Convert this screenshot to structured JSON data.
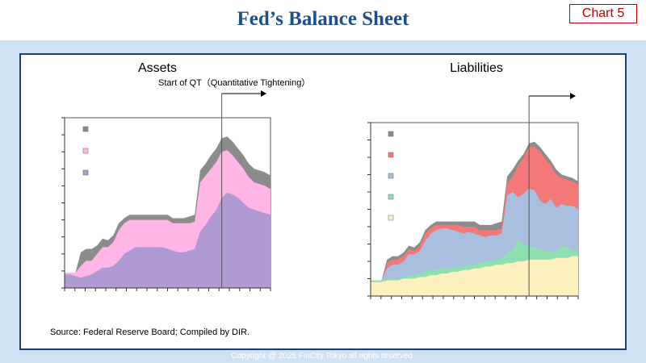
{
  "page": {
    "title": "Fed’s Balance Sheet",
    "chart_tag": "Chart 5",
    "source": "Source: Federal Reserve Board; Compiled by DIR.",
    "footer": "Copyright @ 2025 FinCity.Tokyo all rights reserved."
  },
  "colors": {
    "title": "#1f4e8c",
    "tag": "#c00000",
    "band": "#cfe2f3",
    "gray": "#8c8c8c",
    "pink": "#ffb6e6",
    "purple": "#b09ad2",
    "red": "#f47878",
    "blue": "#a9bfe0",
    "green": "#8fe0b0",
    "cream": "#fff0c0"
  },
  "chart_data": [
    {
      "type": "area",
      "title": "Assets",
      "annotation": "Start of QT（Quantitative Tightening）",
      "x": [
        0,
        1,
        2,
        3,
        4,
        5,
        6,
        7,
        8,
        9,
        10,
        11,
        12,
        13,
        14,
        15,
        16,
        17,
        18,
        19,
        20,
        21,
        22,
        23,
        24,
        25,
        26,
        27,
        28,
        29,
        30,
        31,
        32,
        33,
        34,
        35,
        36,
        37,
        38
      ],
      "series": [
        {
          "name": "",
          "color": "gray",
          "values": [
            0.9,
            0.9,
            0.9,
            2.1,
            2.3,
            2.3,
            2.5,
            2.9,
            2.8,
            3.1,
            3.8,
            4.1,
            4.3,
            4.3,
            4.3,
            4.3,
            4.3,
            4.3,
            4.3,
            4.3,
            4.1,
            4.1,
            4.1,
            4.2,
            4.3,
            6.9,
            7.3,
            7.8,
            8.2,
            8.8,
            8.9,
            8.6,
            8.2,
            7.8,
            7.3,
            7.0,
            6.9,
            6.8,
            6.6
          ]
        },
        {
          "name": "",
          "color": "pink",
          "values": [
            0.9,
            0.9,
            0.9,
            1.3,
            1.6,
            1.6,
            2.0,
            2.4,
            2.4,
            2.7,
            3.4,
            3.8,
            4.0,
            4.0,
            4.0,
            4.0,
            4.0,
            4.0,
            4.0,
            4.0,
            3.8,
            3.8,
            3.8,
            3.8,
            3.9,
            6.2,
            6.6,
            7.0,
            7.4,
            8.0,
            8.1,
            7.8,
            7.4,
            7.0,
            6.5,
            6.2,
            6.1,
            6.0,
            5.8
          ]
        },
        {
          "name": "",
          "color": "purple",
          "values": [
            0.8,
            0.8,
            0.7,
            0.6,
            0.7,
            0.8,
            1.0,
            1.2,
            1.2,
            1.3,
            1.6,
            2.0,
            2.2,
            2.4,
            2.4,
            2.4,
            2.4,
            2.4,
            2.4,
            2.3,
            2.2,
            2.1,
            2.1,
            2.2,
            2.3,
            3.3,
            3.7,
            4.2,
            4.6,
            5.3,
            5.6,
            5.5,
            5.3,
            5.0,
            4.7,
            4.6,
            4.5,
            4.4,
            4.3
          ]
        }
      ],
      "ylim": [
        0,
        10
      ],
      "qt_start_x": 29,
      "grid": false
    },
    {
      "type": "area",
      "title": "Liabilities",
      "x": [
        0,
        1,
        2,
        3,
        4,
        5,
        6,
        7,
        8,
        9,
        10,
        11,
        12,
        13,
        14,
        15,
        16,
        17,
        18,
        19,
        20,
        21,
        22,
        23,
        24,
        25,
        26,
        27,
        28,
        29,
        30,
        31,
        32,
        33,
        34,
        35,
        36,
        37,
        38
      ],
      "series": [
        {
          "name": "",
          "color": "gray",
          "values": [
            0.9,
            0.9,
            0.9,
            2.1,
            2.3,
            2.3,
            2.5,
            2.9,
            2.8,
            3.1,
            3.8,
            4.1,
            4.3,
            4.3,
            4.3,
            4.3,
            4.3,
            4.3,
            4.3,
            4.3,
            4.1,
            4.1,
            4.1,
            4.2,
            4.3,
            6.9,
            7.3,
            7.8,
            8.2,
            8.8,
            8.9,
            8.6,
            8.2,
            7.8,
            7.3,
            7.0,
            6.9,
            6.8,
            6.6
          ]
        },
        {
          "name": "",
          "color": "red",
          "values": [
            0.9,
            0.9,
            0.9,
            1.9,
            2.1,
            2.1,
            2.3,
            2.7,
            2.6,
            2.9,
            3.6,
            3.9,
            4.1,
            4.1,
            4.1,
            4.1,
            4.1,
            4.0,
            4.0,
            4.0,
            3.8,
            3.8,
            3.8,
            3.8,
            3.9,
            6.5,
            6.9,
            7.5,
            8.0,
            8.6,
            8.6,
            8.3,
            7.9,
            7.5,
            7.0,
            6.8,
            6.7,
            6.6,
            6.4
          ]
        },
        {
          "name": "",
          "color": "blue",
          "values": [
            0.9,
            0.9,
            0.9,
            1.6,
            1.8,
            1.8,
            2.0,
            2.4,
            2.4,
            2.6,
            3.2,
            3.6,
            3.8,
            3.9,
            3.9,
            3.8,
            3.7,
            3.6,
            3.7,
            3.6,
            3.5,
            3.4,
            3.5,
            3.5,
            3.6,
            5.8,
            6.0,
            5.7,
            5.9,
            6.2,
            6.1,
            5.5,
            5.3,
            5.6,
            5.1,
            5.3,
            5.2,
            5.2,
            5.0
          ]
        },
        {
          "name": "",
          "color": "green",
          "values": [
            0.9,
            0.9,
            0.9,
            1.0,
            1.0,
            1.0,
            1.1,
            1.2,
            1.2,
            1.3,
            1.4,
            1.5,
            1.5,
            1.6,
            1.6,
            1.6,
            1.7,
            1.7,
            1.8,
            1.8,
            1.9,
            2.0,
            2.0,
            2.1,
            2.2,
            2.5,
            2.6,
            3.3,
            2.9,
            2.9,
            2.8,
            2.7,
            2.6,
            2.5,
            2.6,
            2.9,
            2.8,
            2.6,
            2.6
          ]
        },
        {
          "name": "",
          "color": "cream",
          "values": [
            0.8,
            0.8,
            0.8,
            0.9,
            0.9,
            0.9,
            1.0,
            1.0,
            1.0,
            1.1,
            1.1,
            1.2,
            1.2,
            1.3,
            1.3,
            1.4,
            1.4,
            1.5,
            1.5,
            1.6,
            1.6,
            1.7,
            1.7,
            1.8,
            1.8,
            1.9,
            1.9,
            2.0,
            2.0,
            2.1,
            2.1,
            2.1,
            2.1,
            2.1,
            2.2,
            2.2,
            2.2,
            2.3,
            2.3
          ]
        }
      ],
      "ylim": [
        0,
        10
      ],
      "qt_start_x": 29,
      "grid": false
    }
  ]
}
